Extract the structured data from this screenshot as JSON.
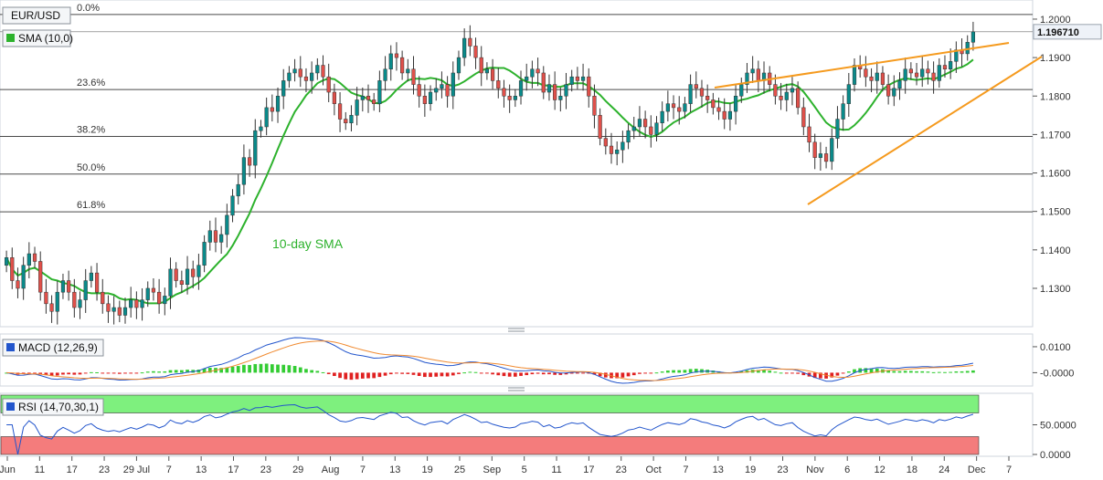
{
  "header": {
    "symbol": "EUR/USD",
    "indicator": "SMA (10,0)",
    "current_price": "1.196710"
  },
  "colors": {
    "up": "#0a8a8a",
    "down": "#e0504a",
    "sma": "#2db22d",
    "trend": "#f59a1e",
    "macd_line": "#2255cc",
    "signal_line": "#f08a30",
    "hist_pos": "#33cc33",
    "hist_neg": "#e02020",
    "rsi_line": "#2255cc",
    "rsi_overbought": "#7ef07e",
    "rsi_oversold": "#f47c7c",
    "price_tag": "#eef2f8"
  },
  "chart_data": [
    {
      "type": "candlestick",
      "title": "EUR/USD",
      "price_ylim": [
        1.1205,
        1.2045
      ],
      "yticks": [
        "1.2000",
        "1.1900",
        "1.1800",
        "1.1700",
        "1.1600",
        "1.1500",
        "1.1400",
        "1.1300"
      ],
      "ytick_values": [
        1.2,
        1.19,
        1.18,
        1.17,
        1.16,
        1.15,
        1.14,
        1.13
      ],
      "x_labels": [
        "Jun",
        "11",
        "17",
        "23",
        "29 Jul",
        "7",
        "13",
        "17",
        "23",
        "29",
        "Aug",
        "7",
        "13",
        "19",
        "25",
        "Sep",
        "5",
        "11",
        "17",
        "23",
        "Oct",
        "7",
        "13",
        "19",
        "23",
        "Nov",
        "6",
        "12",
        "18",
        "24",
        "Dec",
        "7"
      ],
      "fibonacci": [
        {
          "label": "0.0%",
          "value": 1.2012
        },
        {
          "label": "23.6%",
          "value": 1.1817
        },
        {
          "label": "38.2%",
          "value": 1.1695
        },
        {
          "label": "50.0%",
          "value": 1.1597
        },
        {
          "label": "61.8%",
          "value": 1.1499
        }
      ],
      "annotation": "10-day SMA",
      "current_price": 1.19671,
      "closes": [
        1.138,
        1.132,
        1.13,
        1.136,
        1.139,
        1.137,
        1.129,
        1.126,
        1.124,
        1.129,
        1.132,
        1.129,
        1.125,
        1.127,
        1.132,
        1.134,
        1.129,
        1.126,
        1.124,
        1.125,
        1.123,
        1.125,
        1.127,
        1.125,
        1.127,
        1.13,
        1.129,
        1.126,
        1.128,
        1.135,
        1.132,
        1.131,
        1.135,
        1.133,
        1.136,
        1.142,
        1.145,
        1.142,
        1.144,
        1.149,
        1.154,
        1.157,
        1.164,
        1.162,
        1.171,
        1.172,
        1.177,
        1.176,
        1.18,
        1.184,
        1.186,
        1.187,
        1.185,
        1.184,
        1.186,
        1.188,
        1.185,
        1.181,
        1.178,
        1.174,
        1.173,
        1.175,
        1.179,
        1.18,
        1.179,
        1.178,
        1.184,
        1.187,
        1.191,
        1.19,
        1.186,
        1.187,
        1.183,
        1.18,
        1.178,
        1.181,
        1.182,
        1.183,
        1.18,
        1.186,
        1.19,
        1.195,
        1.193,
        1.19,
        1.186,
        1.187,
        1.184,
        1.182,
        1.18,
        1.179,
        1.18,
        1.184,
        1.185,
        1.187,
        1.186,
        1.181,
        1.183,
        1.179,
        1.18,
        1.183,
        1.185,
        1.184,
        1.185,
        1.18,
        1.175,
        1.169,
        1.167,
        1.165,
        1.166,
        1.168,
        1.171,
        1.172,
        1.174,
        1.172,
        1.17,
        1.173,
        1.176,
        1.178,
        1.177,
        1.176,
        1.178,
        1.183,
        1.182,
        1.18,
        1.179,
        1.177,
        1.176,
        1.174,
        1.176,
        1.18,
        1.183,
        1.186,
        1.187,
        1.184,
        1.186,
        1.183,
        1.18,
        1.179,
        1.181,
        1.182,
        1.177,
        1.172,
        1.168,
        1.164,
        1.165,
        1.163,
        1.169,
        1.174,
        1.178,
        1.183,
        1.188,
        1.187,
        1.185,
        1.184,
        1.186,
        1.183,
        1.18,
        1.182,
        1.184,
        1.187,
        1.186,
        1.185,
        1.187,
        1.186,
        1.184,
        1.188,
        1.187,
        1.189,
        1.192,
        1.191,
        1.194,
        1.1967
      ]
    },
    {
      "type": "line",
      "title": "MACD (12,26,9)",
      "yticks": [
        "0.0100",
        "-0.0000"
      ],
      "ytick_values": [
        0.01,
        0.0
      ]
    },
    {
      "type": "line",
      "title": "RSI (14,70,30,1)",
      "yticks": [
        "50.0000",
        "0.0000"
      ],
      "ytick_values": [
        50,
        0
      ],
      "bands": {
        "overbought": 70,
        "oversold": 30
      }
    }
  ]
}
